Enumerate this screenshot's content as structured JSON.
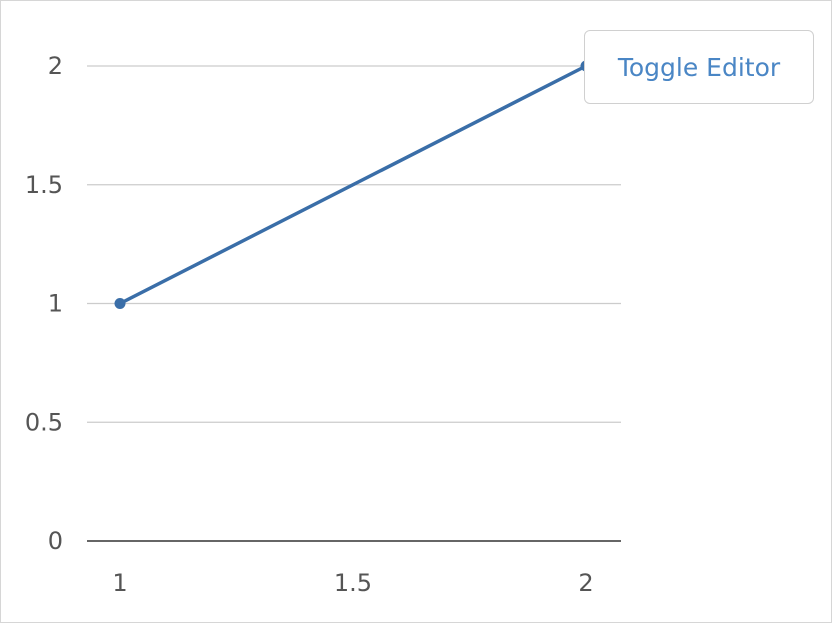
{
  "toolbar": {
    "toggle_label": "Toggle Editor"
  },
  "colors": {
    "series": "#3a6ea8",
    "grid": "#cccccc",
    "axis": "#333333",
    "tick_text": "#555555",
    "button_text": "#4a86c5"
  },
  "chart_data": {
    "type": "line",
    "title": "",
    "xlabel": "",
    "ylabel": "",
    "xlim": [
      1,
      2
    ],
    "ylim": [
      0,
      2
    ],
    "x_ticks": [
      "1",
      "1.5",
      "2"
    ],
    "y_ticks": [
      "0",
      "0.5",
      "1",
      "1.5",
      "2"
    ],
    "grid": true,
    "legend": false,
    "series": [
      {
        "x": [
          1,
          2
        ],
        "y": [
          1,
          2
        ]
      }
    ]
  }
}
